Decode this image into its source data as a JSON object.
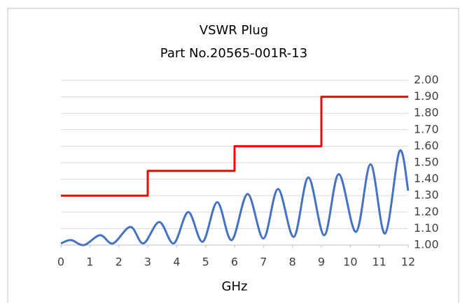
{
  "chart_data": {
    "type": "line",
    "title": "VSWR Plug",
    "subtitle": "Part No.20565-001R-13",
    "x_label": "GHz",
    "xlim": [
      0,
      12
    ],
    "xticks": [
      0,
      1,
      2,
      3,
      4,
      5,
      6,
      7,
      8,
      9,
      10,
      11,
      12
    ],
    "ylim": [
      1,
      2
    ],
    "yticks": [
      {
        "value": 1,
        "label": "1.00"
      },
      {
        "value": 1.1,
        "label": "1.10"
      },
      {
        "value": 1.2,
        "label": "1.20"
      },
      {
        "value": 1.3,
        "label": "1.30"
      },
      {
        "value": 1.4,
        "label": "1.40"
      },
      {
        "value": 1.5,
        "label": "1.50"
      },
      {
        "value": 1.6,
        "label": "1.60"
      },
      {
        "value": 1.7,
        "label": "1.70"
      },
      {
        "value": 1.8,
        "label": "1.80"
      },
      {
        "value": 1.9,
        "label": "1.90"
      },
      {
        "value": 2,
        "label": "2.00"
      }
    ],
    "y_axis_side": "right",
    "grid": true,
    "series": [
      {
        "color": "#ff0000",
        "smooth": false,
        "x": [
          0,
          3,
          3,
          6,
          6,
          9,
          9,
          12
        ],
        "values": [
          1.3,
          1.3,
          1.45,
          1.45,
          1.6,
          1.6,
          1.9,
          1.9
        ]
      },
      {
        "color": "#4472c4",
        "smooth": true,
        "x": [
          0,
          0.35,
          0.8,
          1.35,
          1.8,
          2.4,
          2.85,
          3.4,
          3.9,
          4.4,
          4.9,
          5.4,
          5.9,
          6.45,
          7.0,
          7.5,
          8.05,
          8.55,
          9.1,
          9.6,
          10.2,
          10.7,
          11.2,
          11.7,
          12
        ],
        "values": [
          1.01,
          1.03,
          1.0,
          1.06,
          1.01,
          1.11,
          1.01,
          1.14,
          1.01,
          1.2,
          1.02,
          1.26,
          1.03,
          1.31,
          1.04,
          1.34,
          1.05,
          1.41,
          1.06,
          1.43,
          1.08,
          1.49,
          1.07,
          1.57,
          1.33
        ]
      }
    ]
  }
}
